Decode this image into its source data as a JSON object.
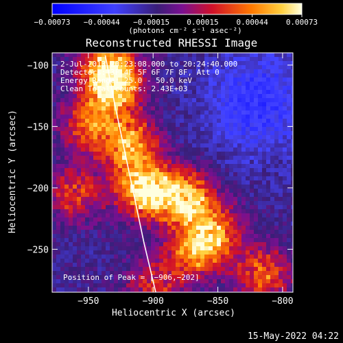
{
  "chart_data": {
    "type": "heatmap",
    "title": "Reconstructed RHESSI Image",
    "xlabel": "Heliocentric X (arcsec)",
    "ylabel": "Heliocentric Y (arcsec)",
    "xlim": [
      -978,
      -792
    ],
    "ylim": [
      -285,
      -90
    ],
    "xticks": [
      -950,
      -900,
      -850,
      -800
    ],
    "xtick_labels": [
      "−950",
      "−900",
      "−850",
      "−800"
    ],
    "yticks": [
      -100,
      -150,
      -200,
      -250
    ],
    "ytick_labels": [
      "−100",
      "−150",
      "−200",
      "−250"
    ],
    "colorbar": {
      "min": -0.00073,
      "max": 0.00073,
      "ticks": [
        -0.00073,
        -0.00044,
        -0.00015,
        0.00015,
        0.00044,
        0.00073
      ],
      "tick_labels": [
        "−0.00073",
        "−0.00044",
        "−0.00015",
        "0.00015",
        "0.00044",
        "0.00073"
      ],
      "units_label": "(photons cm⁻² s⁻¹ asec⁻²)"
    },
    "annotations": [
      "2-Jul-2013 20:23:08.000 to 20:24:40.000",
      "Detectors: 3F 4F 5F 6F 7F 8F, Att 0",
      "Energy Range: 25.0 - 50.0 keV",
      "Clean    Total counts: 2.43E+03",
      "Position of Peak = [−906,−202]"
    ],
    "peak": {
      "x": -906,
      "y": -202
    },
    "limb_curve": {
      "points": [
        [
          -937,
          -92
        ],
        [
          -930,
          -130
        ],
        [
          -922,
          -170
        ],
        [
          -915,
          -205
        ],
        [
          -907,
          -245
        ],
        [
          -898,
          -285
        ]
      ]
    },
    "emission_ridge": [
      {
        "x": -930,
        "y": -120,
        "intensity": 0.82
      },
      {
        "x": -935,
        "y": -100,
        "intensity": 0.72
      },
      {
        "x": -918,
        "y": -165,
        "intensity": 0.78
      },
      {
        "x": -906,
        "y": -202,
        "intensity": 1.0
      },
      {
        "x": -875,
        "y": -208,
        "intensity": 0.85
      },
      {
        "x": -868,
        "y": -252,
        "intensity": 0.68
      },
      {
        "x": -950,
        "y": -150,
        "intensity": 0.55
      },
      {
        "x": -960,
        "y": -205,
        "intensity": 0.5
      },
      {
        "x": -852,
        "y": -235,
        "intensity": 0.62
      },
      {
        "x": -815,
        "y": -270,
        "intensity": 0.6
      },
      {
        "x": -900,
        "y": -280,
        "intensity": 0.45
      }
    ],
    "colors": {
      "negative": "#1515ff",
      "zero": "#3a1e78",
      "mid": "#c8102e",
      "positive": "#ff8a00",
      "max": "#fff6c8"
    }
  },
  "footer": {
    "timestamp": "15-May-2022 04:22"
  }
}
